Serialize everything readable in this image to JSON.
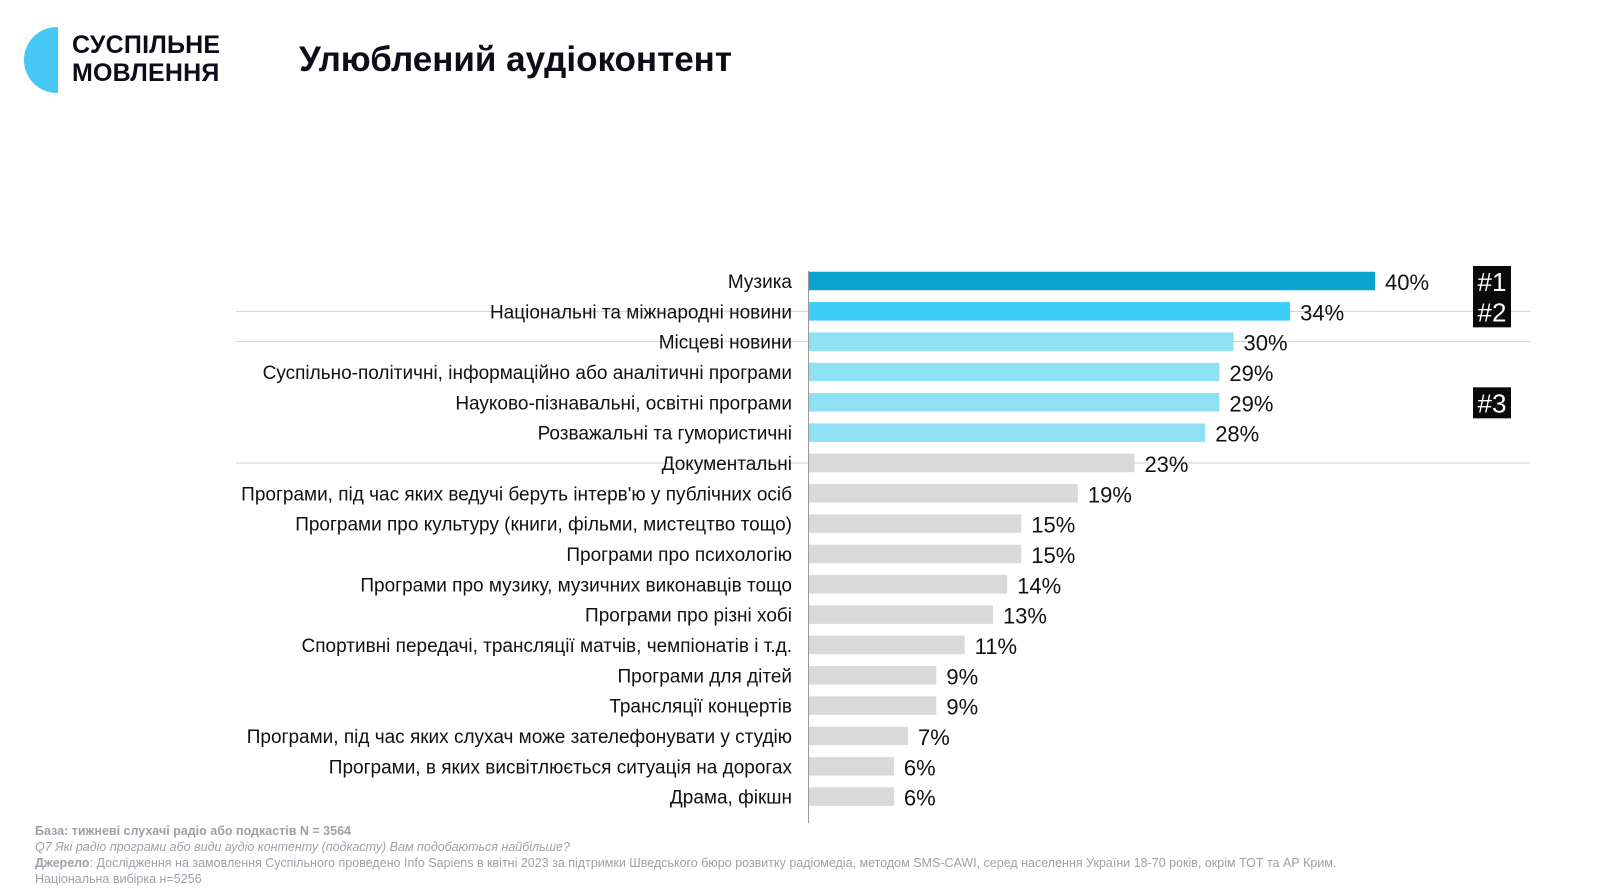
{
  "brand": {
    "line1": "СУСПІЛЬНЕ",
    "line2": "МОВЛЕННЯ"
  },
  "title": "Улюблений аудіоконтент",
  "colors": {
    "top1": "#0ba3d0",
    "top2": "#3ccdf8",
    "top3": "#8ee0f3",
    "rest": "#d9d9d9",
    "badge_bg": "#0a0a0a",
    "badge_fg": "#ffffff"
  },
  "chart_data": {
    "type": "bar",
    "orientation": "horizontal",
    "xlim": [
      0,
      40
    ],
    "categories": [
      "Музика",
      "Національні та міжнародні новини",
      "Місцеві новини",
      "Суспільно-політичні, інформаційно або аналітичні програми",
      "Науково-пізнавальні, освітні програми",
      "Розважальні та гумористичні",
      "Документальні",
      "Програми, під час яких ведучі беруть інтерв'ю у публічних осіб",
      "Програми про культуру (книги, фільми, мистецтво тощо)",
      "Програми про психологію",
      "Програми про музику, музичних виконавців тощо",
      "Програми про різні хобі",
      "Спортивні передачі, трансляції матчів, чемпіонатів і т.д.",
      "Програми для дітей",
      "Трансляції концертів",
      "Програми, під час яких слухач може зателефонувати у студію",
      "Програми, в яких висвітлюється ситуація на дорогах",
      "Драма, фікшн"
    ],
    "values": [
      40,
      34,
      30,
      29,
      29,
      28,
      23,
      19,
      15,
      15,
      14,
      13,
      11,
      9,
      9,
      7,
      6,
      6
    ],
    "value_labels": [
      "40%",
      "34%",
      "30%",
      "29%",
      "29%",
      "28%",
      "23%",
      "19%",
      "15%",
      "15%",
      "14%",
      "13%",
      "11%",
      "9%",
      "9%",
      "7%",
      "6%",
      "6%"
    ],
    "tiers": [
      "top1",
      "top2",
      "top3",
      "top3",
      "top3",
      "top3",
      "rest",
      "rest",
      "rest",
      "rest",
      "rest",
      "rest",
      "rest",
      "rest",
      "rest",
      "rest",
      "rest",
      "rest"
    ],
    "rank_badges": [
      {
        "label": "#1",
        "row": 0
      },
      {
        "label": "#2",
        "row": 1
      },
      {
        "label": "#3",
        "row": 4
      }
    ],
    "group_dividers_after_rows": [
      0,
      1,
      5
    ]
  },
  "footnotes": {
    "base_label": "База: тижневі слухачі радіо або подкастів N = 3564",
    "question": "Q7 Які радіо програми або види аудіо контенту (подкасту) Вам подобаються найбільше?",
    "source_label": "Джерело",
    "source_text": ": Дослідження на замовлення Суспільного проведено Info Sapiens в квітні 2023 за підтримки Шведського бюро розвитку радіомедіа, методом SMS-CAWI, серед населення України 18-70 років, окрім ТОТ та АР Крим.",
    "sample": "Національна вибірка н=5256"
  }
}
